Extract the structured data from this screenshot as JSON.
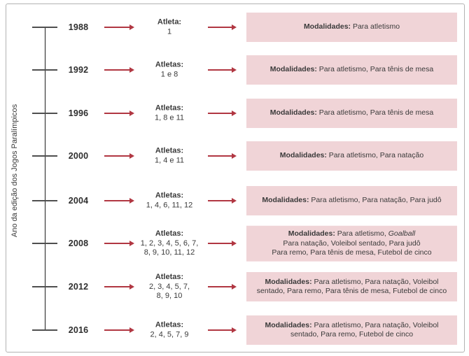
{
  "axis": {
    "label": "Ano da edição dos Jogos Paralímpicos"
  },
  "colors": {
    "arrow": "#b13742",
    "box_bg": "#f0d4d7",
    "text": "#3a3a3a",
    "timeline": "#1e1e1e",
    "tick": "#4f4f4f"
  },
  "rows": [
    {
      "year": "1988",
      "athletes": {
        "title": "Atleta:",
        "lines": [
          "1"
        ]
      },
      "modalities": {
        "title": "Modalidades:",
        "lines": [
          [
            {
              "t": " Para atletismo"
            }
          ]
        ]
      }
    },
    {
      "year": "1992",
      "athletes": {
        "title": "Atletas:",
        "lines": [
          "1 e 8"
        ]
      },
      "modalities": {
        "title": "Modalidades:",
        "lines": [
          [
            {
              "t": " Para atletismo, Para tênis de mesa"
            }
          ]
        ]
      }
    },
    {
      "year": "1996",
      "athletes": {
        "title": "Atletas:",
        "lines": [
          "1, 8 e 11"
        ]
      },
      "modalities": {
        "title": "Modalidades:",
        "lines": [
          [
            {
              "t": " Para atletismo, Para tênis de mesa"
            }
          ]
        ]
      }
    },
    {
      "year": "2000",
      "athletes": {
        "title": "Atletas:",
        "lines": [
          "1, 4 e 11"
        ]
      },
      "modalities": {
        "title": "Modalidades:",
        "lines": [
          [
            {
              "t": " Para atletismo, Para natação"
            }
          ]
        ]
      }
    },
    {
      "year": "2004",
      "athletes": {
        "title": "Atletas:",
        "lines": [
          "1, 4, 6, 11, 12"
        ]
      },
      "modalities": {
        "title": "Modalidades:",
        "lines": [
          [
            {
              "t": " Para atletismo, Para natação, Para judô"
            }
          ]
        ]
      }
    },
    {
      "year": "2008",
      "athletes": {
        "title": "Atletas:",
        "lines": [
          "1, 2, 3, 4, 5, 6, 7,",
          "8, 9, 10, 11, 12"
        ]
      },
      "modalities": {
        "title": "Modalidades:",
        "lines": [
          [
            {
              "t": " Para atletismo, "
            },
            {
              "t": "Goalball",
              "i": true
            }
          ],
          [
            {
              "t": "Para natação, Voleibol sentado, Para judô"
            }
          ],
          [
            {
              "t": "Para remo, Para tênis de mesa, Futebol de cinco"
            }
          ]
        ]
      }
    },
    {
      "year": "2012",
      "athletes": {
        "title": "Atletas:",
        "lines": [
          "2, 3, 4, 5, 7,",
          "8, 9, 10"
        ]
      },
      "modalities": {
        "title": "Modalidades:",
        "lines": [
          [
            {
              "t": " Para atletismo, Para natação, Voleibol"
            }
          ],
          [
            {
              "t": "sentado, Para remo, Para tênis de mesa, Futebol de cinco"
            }
          ]
        ]
      }
    },
    {
      "year": "2016",
      "athletes": {
        "title": "Atletas:",
        "lines": [
          "2, 4, 5, 7, 9"
        ]
      },
      "modalities": {
        "title": "Modalidades:",
        "lines": [
          [
            {
              "t": " Para atletismo, Para natação, Voleibol"
            }
          ],
          [
            {
              "t": "sentado, Para remo, Futebol de cinco"
            }
          ]
        ]
      }
    }
  ]
}
